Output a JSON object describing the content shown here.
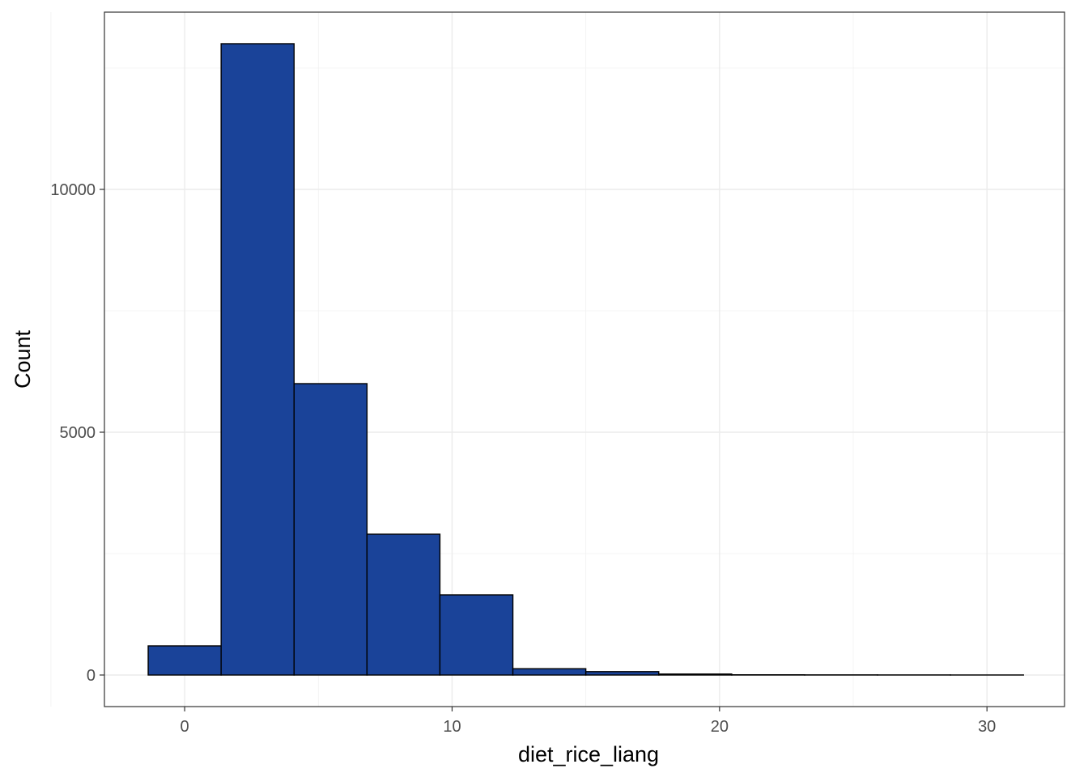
{
  "chart_data": {
    "type": "bar",
    "subtype": "histogram",
    "title": "",
    "xlabel": "diet_rice_liang",
    "ylabel": "Count",
    "bin_width": 2.727,
    "bins": [
      {
        "x_start": -1.364,
        "x_end": 1.364,
        "count": 600
      },
      {
        "x_start": 1.364,
        "x_end": 4.091,
        "count": 13000
      },
      {
        "x_start": 4.091,
        "x_end": 6.818,
        "count": 6000
      },
      {
        "x_start": 6.818,
        "x_end": 9.545,
        "count": 2900
      },
      {
        "x_start": 9.545,
        "x_end": 12.273,
        "count": 1650
      },
      {
        "x_start": 12.273,
        "x_end": 15.0,
        "count": 130
      },
      {
        "x_start": 15.0,
        "x_end": 17.727,
        "count": 70
      },
      {
        "x_start": 17.727,
        "x_end": 20.455,
        "count": 20
      },
      {
        "x_start": 20.455,
        "x_end": 23.182,
        "count": 5
      },
      {
        "x_start": 23.182,
        "x_end": 25.909,
        "count": 3
      },
      {
        "x_start": 25.909,
        "x_end": 28.636,
        "count": 2
      },
      {
        "x_start": 28.636,
        "x_end": 31.364,
        "count": 1
      }
    ],
    "xlim": [
      -3.0,
      32.9
    ],
    "ylim": [
      -650,
      13650
    ],
    "x_ticks": [
      0,
      10,
      20,
      30
    ],
    "x_tick_labels": [
      "0",
      "10",
      "20",
      "30"
    ],
    "x_minor_ticks": [
      -5,
      5,
      15,
      25
    ],
    "y_ticks": [
      0,
      5000,
      10000
    ],
    "y_tick_labels": [
      "0",
      "5000",
      "10000"
    ],
    "y_minor_ticks": [
      2500,
      7500,
      12500
    ],
    "grid": true,
    "legend": "none",
    "colors": {
      "bar_fill": "#1a4399",
      "bar_outline": "#000000",
      "panel_border": "#333333",
      "grid_major": "#ebebeb",
      "grid_minor": "#f2f2f2",
      "background": "#ffffff"
    }
  }
}
